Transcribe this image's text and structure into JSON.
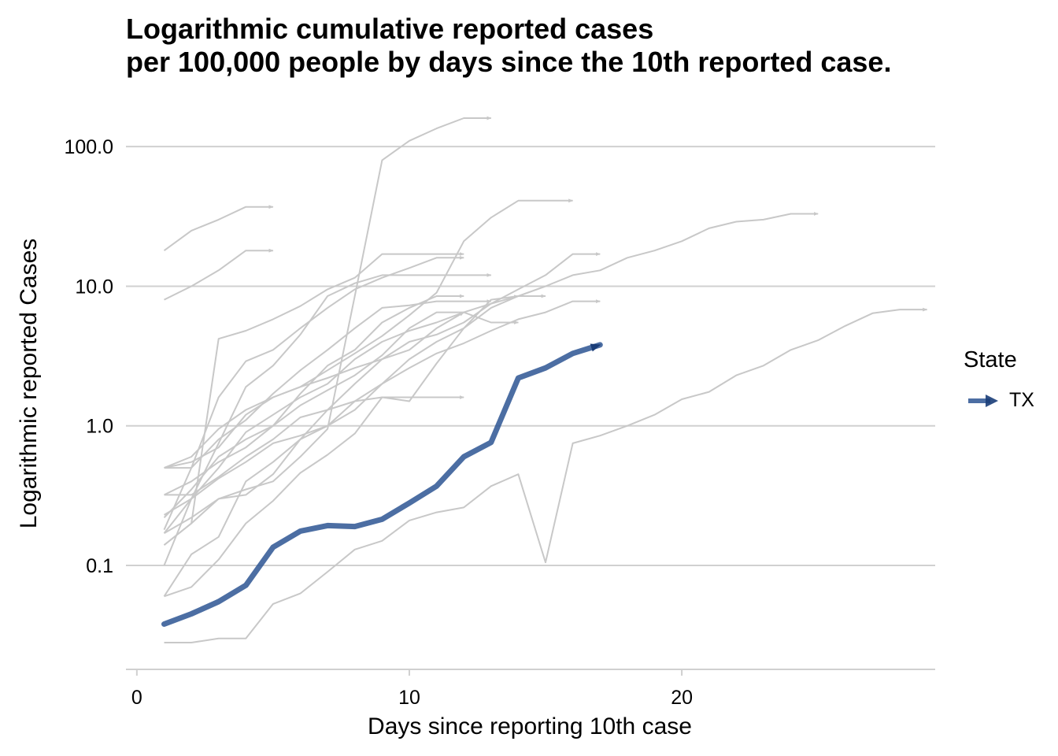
{
  "chart_data": {
    "type": "line",
    "title_lines": [
      "Logarithmic cumulative reported cases",
      "per 100,000 people by days since the 10th reported case."
    ],
    "xlabel": "Days since reporting 10th case",
    "ylabel": "Logarithmic reported Cases",
    "x_scale": "linear",
    "y_scale": "log10",
    "xlim": [
      -0.4,
      29.3
    ],
    "ylim": [
      0.018,
      160
    ],
    "x_ticks": [
      0,
      10,
      20
    ],
    "x_tick_labels": [
      "0",
      "10",
      "20"
    ],
    "y_ticks": [
      0.1,
      1,
      10,
      100
    ],
    "y_tick_labels": [
      "0.1",
      "1.0",
      "10.0",
      "100.0"
    ],
    "grid": "horizontal-major",
    "legend": {
      "title": "State",
      "placement": "right",
      "entries": [
        "TX"
      ]
    },
    "colors": {
      "highlight": "#2d5593",
      "background_series": "#c8c8c8",
      "gridline": "#d0d0d0"
    },
    "series": [
      {
        "name": "TX",
        "highlight": true,
        "x": [
          1,
          2,
          3,
          4,
          5,
          6,
          7,
          8,
          9,
          10,
          11,
          12,
          13,
          14,
          15,
          16,
          17
        ],
        "y": [
          0.038,
          0.045,
          0.055,
          0.072,
          0.135,
          0.176,
          0.193,
          0.19,
          0.214,
          0.28,
          0.37,
          0.6,
          0.76,
          2.2,
          2.6,
          3.3,
          3.8
        ]
      },
      {
        "x": [
          1,
          2,
          3,
          4,
          5
        ],
        "y": [
          18,
          25,
          30,
          37,
          37
        ]
      },
      {
        "x": [
          1,
          2,
          3,
          4,
          5
        ],
        "y": [
          8,
          10,
          13,
          18,
          18
        ]
      },
      {
        "x": [
          1,
          2,
          3,
          4,
          5,
          6,
          7,
          8,
          9,
          10,
          11,
          12
        ],
        "y": [
          0.14,
          0.2,
          4.2,
          4.8,
          5.8,
          7.2,
          9.5,
          11.5,
          17,
          17,
          17,
          17
        ]
      },
      {
        "x": [
          1,
          2,
          3,
          4,
          5,
          6,
          7,
          8,
          9,
          10,
          11,
          12
        ],
        "y": [
          0.5,
          0.6,
          0.95,
          1.3,
          1.6,
          1.9,
          2.2,
          2.6,
          3.0,
          3.5,
          5.0,
          6.5
        ]
      },
      {
        "x": [
          1,
          2,
          3,
          4,
          5,
          6,
          7,
          8,
          9,
          10,
          11,
          12,
          13
        ],
        "y": [
          0.1,
          0.3,
          0.75,
          1.9,
          2.7,
          4.5,
          8.5,
          10.5,
          12,
          12,
          12,
          12,
          12
        ]
      },
      {
        "x": [
          1,
          2,
          3,
          4,
          5,
          6,
          7,
          8,
          9,
          10,
          11,
          12
        ],
        "y": [
          0.18,
          0.5,
          1.6,
          2.9,
          3.5,
          5,
          7,
          9.5,
          11.5,
          13.5,
          16,
          16
        ]
      },
      {
        "x": [
          1,
          2,
          3,
          4,
          5,
          6,
          7,
          8,
          9,
          10,
          11,
          12,
          13,
          14
        ],
        "y": [
          0.32,
          0.32,
          0.43,
          0.6,
          0.8,
          1.15,
          1.3,
          1.5,
          1.6,
          1.5,
          2.8,
          5,
          8,
          8.5
        ]
      },
      {
        "x": [
          1,
          2,
          3,
          4,
          5,
          6,
          7,
          8,
          9,
          10,
          11,
          12,
          13,
          14
        ],
        "y": [
          0.22,
          0.35,
          0.6,
          0.8,
          1.0,
          1.4,
          1.8,
          2.3,
          3.2,
          5,
          6.5,
          6.5,
          5.5,
          5.5
        ]
      },
      {
        "x": [
          1,
          2,
          3,
          4,
          5,
          6,
          7,
          8,
          9,
          10,
          11,
          12,
          13,
          14,
          15,
          16,
          17
        ],
        "y": [
          0.06,
          0.12,
          0.16,
          0.4,
          0.55,
          0.8,
          1.3,
          2.0,
          3.0,
          4.0,
          4.5,
          5.5,
          7.5,
          9.5,
          12,
          17,
          17
        ]
      },
      {
        "x": [
          1,
          2,
          3,
          4,
          5,
          6,
          7,
          8,
          9,
          10,
          11,
          12
        ],
        "y": [
          0.32,
          0.4,
          0.55,
          0.7,
          1.0,
          1.7,
          2.7,
          3.5,
          5.5,
          7.0,
          8.5,
          8.5
        ]
      },
      {
        "x": [
          1,
          2,
          3,
          4,
          5,
          6,
          7,
          8,
          9,
          10,
          11,
          12,
          13,
          14,
          15
        ],
        "y": [
          0.17,
          0.3,
          0.5,
          0.9,
          1.2,
          1.6,
          2.0,
          3.0,
          4.0,
          4.8,
          5.5,
          6.5,
          7.5,
          8.5,
          8.5
        ]
      },
      {
        "x": [
          1,
          2,
          3,
          4,
          5,
          6,
          7,
          8,
          9,
          10,
          11,
          12,
          13,
          14,
          15,
          16,
          17
        ],
        "y": [
          0.14,
          0.2,
          0.3,
          0.32,
          0.45,
          0.8,
          1.0,
          1.5,
          2.0,
          2.6,
          3.3,
          3.9,
          4.8,
          5.8,
          6.5,
          7.8,
          7.8
        ]
      },
      {
        "x": [
          1,
          2,
          3,
          4,
          5,
          6,
          7,
          8,
          9,
          10,
          11,
          12,
          13,
          14,
          15,
          16
        ],
        "y": [
          0.5,
          0.55,
          0.7,
          1.2,
          1.6,
          1.9,
          2.5,
          3.3,
          4.4,
          6.2,
          9,
          21,
          31,
          41,
          41,
          41
        ]
      },
      {
        "x": [
          1,
          2,
          3,
          4,
          5,
          6,
          7,
          8,
          9,
          10,
          11,
          12,
          13,
          14,
          15,
          16,
          17,
          18,
          19,
          20,
          21,
          22,
          23,
          24,
          25
        ],
        "y": [
          0.23,
          0.3,
          0.42,
          0.55,
          0.75,
          0.85,
          1.0,
          1.3,
          2.0,
          3.0,
          4.0,
          5.0,
          7,
          8.5,
          10,
          12,
          13,
          16,
          18,
          21,
          26,
          29,
          30,
          33,
          33
        ]
      },
      {
        "x": [
          1,
          2,
          3,
          4,
          5,
          6,
          7,
          8,
          9,
          10,
          11,
          12,
          13
        ],
        "y": [
          0.5,
          0.5,
          0.8,
          1.1,
          1.7,
          2.5,
          3.5,
          5,
          7,
          7.3,
          7.8,
          7.8,
          7.8
        ]
      },
      {
        "x": [
          1,
          2,
          3,
          4,
          5,
          6,
          7,
          8,
          9,
          10,
          11,
          12
        ],
        "y": [
          0.06,
          0.07,
          0.11,
          0.2,
          0.29,
          0.46,
          0.62,
          0.88,
          1.6,
          1.6,
          1.6,
          1.6
        ]
      },
      {
        "x": [
          1,
          2,
          3,
          4,
          5,
          6,
          7,
          8,
          9,
          10,
          11,
          12,
          13
        ],
        "y": [
          0.17,
          0.22,
          0.3,
          0.35,
          0.4,
          0.6,
          0.95,
          8.5,
          80,
          110,
          135,
          160,
          160
        ]
      },
      {
        "x": [
          1,
          2,
          3,
          4,
          5,
          6,
          7,
          8,
          9,
          10,
          11,
          12,
          13,
          14,
          15,
          16,
          17,
          18,
          19,
          20,
          21,
          22,
          23,
          24,
          25,
          26,
          27,
          28,
          29
        ],
        "y": [
          0.028,
          0.028,
          0.03,
          0.03,
          0.053,
          0.063,
          0.09,
          0.13,
          0.15,
          0.21,
          0.24,
          0.26,
          0.37,
          0.45,
          0.105,
          0.75,
          0.85,
          1.0,
          1.2,
          1.55,
          1.75,
          2.3,
          2.7,
          3.5,
          4.1,
          5.2,
          6.4,
          6.8,
          6.8
        ]
      }
    ]
  }
}
